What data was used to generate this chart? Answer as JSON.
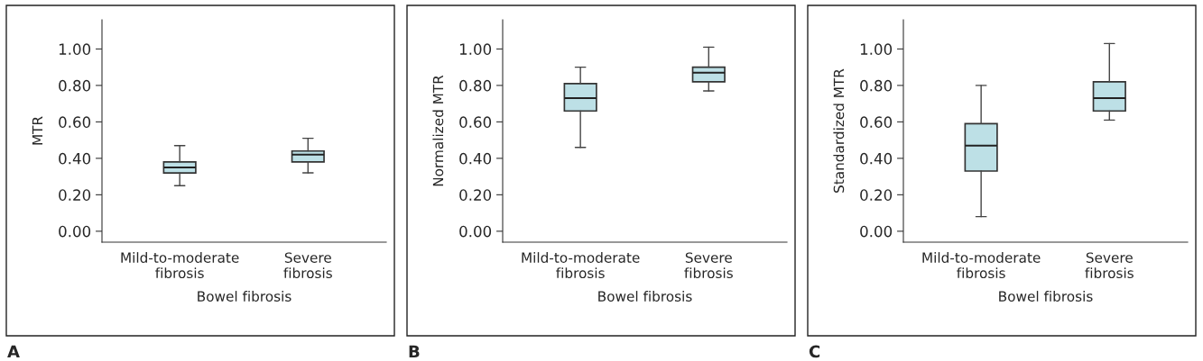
{
  "chart_data": [
    {
      "type": "box",
      "xlabel": "Bowel fibrosis",
      "ylabel": "MTR",
      "categories": [
        "Mild-to-moderate\nfibrosis",
        "Severe\nfibrosis"
      ],
      "color": "#bde0e6",
      "boxes": [
        {
          "low": 0.25,
          "q1": 0.32,
          "median": 0.35,
          "q3": 0.38,
          "high": 0.47
        },
        {
          "low": 0.32,
          "q1": 0.38,
          "median": 0.42,
          "q3": 0.44,
          "high": 0.51
        }
      ],
      "ylim": [
        -0.06,
        1.16
      ],
      "yticks": [
        {
          "value": 0,
          "label": "0.00"
        },
        {
          "value": 0.2,
          "label": "0.20"
        },
        {
          "value": 0.4,
          "label": "0.40"
        },
        {
          "value": 0.6,
          "label": "0.60"
        },
        {
          "value": 0.8,
          "label": "0.80"
        },
        {
          "value": 1.0,
          "label": "1.00"
        }
      ],
      "grid": false,
      "annotations": [
        "A"
      ]
    },
    {
      "type": "box",
      "xlabel": "Bowel fibrosis",
      "ylabel": "Normalized MTR",
      "categories": [
        "Mild-to-moderate\nfibrosis",
        "Severe\nfibrosis"
      ],
      "color": "#bde0e6",
      "boxes": [
        {
          "low": 0.46,
          "q1": 0.66,
          "median": 0.73,
          "q3": 0.81,
          "high": 0.9
        },
        {
          "low": 0.77,
          "q1": 0.82,
          "median": 0.87,
          "q3": 0.9,
          "high": 1.01
        }
      ],
      "ylim": [
        -0.06,
        1.16
      ],
      "yticks": [
        {
          "value": 0,
          "label": "0.00"
        },
        {
          "value": 0.2,
          "label": "0.20"
        },
        {
          "value": 0.4,
          "label": "0.40"
        },
        {
          "value": 0.6,
          "label": "0.60"
        },
        {
          "value": 0.8,
          "label": "0.80"
        },
        {
          "value": 1.0,
          "label": "1.00"
        }
      ],
      "grid": false,
      "annotations": [
        "B"
      ]
    },
    {
      "type": "box",
      "xlabel": "Bowel fibrosis",
      "ylabel": "Standardized MTR",
      "categories": [
        "Mild-to-moderate\nfibrosis",
        "Severe\nfibrosis"
      ],
      "color": "#bde0e6",
      "boxes": [
        {
          "low": 0.08,
          "q1": 0.33,
          "median": 0.47,
          "q3": 0.59,
          "high": 0.8
        },
        {
          "low": 0.61,
          "q1": 0.66,
          "median": 0.73,
          "q3": 0.82,
          "high": 1.03
        }
      ],
      "ylim": [
        -0.06,
        1.16
      ],
      "yticks": [
        {
          "value": 0,
          "label": "0.00"
        },
        {
          "value": 0.2,
          "label": "0.20"
        },
        {
          "value": 0.4,
          "label": "0.40"
        },
        {
          "value": 0.6,
          "label": "0.60"
        },
        {
          "value": 0.8,
          "label": "0.80"
        },
        {
          "value": 1.0,
          "label": "1.00"
        }
      ],
      "grid": false,
      "annotations": [
        "C"
      ]
    }
  ]
}
